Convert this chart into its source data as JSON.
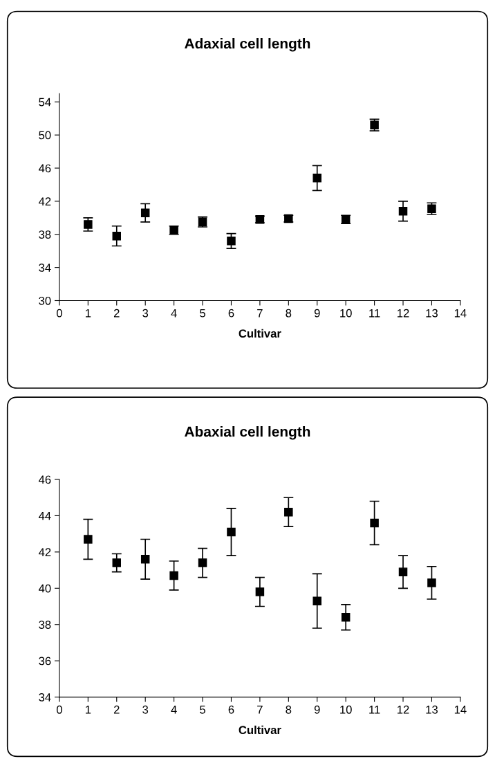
{
  "chart_data": [
    {
      "type": "scatter",
      "title": "Adaxial cell length",
      "xlabel": "Cultivar",
      "x": [
        1,
        2,
        3,
        4,
        5,
        6,
        7,
        8,
        9,
        10,
        11,
        12,
        13
      ],
      "marker": "square",
      "grid": false,
      "legend": false,
      "series": [
        {
          "color": "#000000",
          "values": [
            39.2,
            37.8,
            40.6,
            38.5,
            39.5,
            37.2,
            39.8,
            39.9,
            44.8,
            39.8,
            51.2,
            40.8,
            41.1
          ],
          "errors": [
            0.8,
            1.2,
            1.1,
            0.5,
            0.6,
            0.9,
            0.4,
            0.4,
            1.5,
            0.5,
            0.7,
            1.2,
            0.7
          ]
        }
      ],
      "xlim": [
        0,
        14
      ],
      "xticks": [
        0,
        1,
        2,
        3,
        4,
        5,
        6,
        7,
        8,
        9,
        10,
        11,
        12,
        13,
        14
      ],
      "ylim": [
        30,
        55
      ],
      "yticks": [
        30,
        34,
        38,
        42,
        46,
        50,
        54
      ]
    },
    {
      "type": "scatter",
      "title": "Abaxial cell length",
      "xlabel": "Cultivar",
      "x": [
        1,
        2,
        3,
        4,
        5,
        6,
        7,
        8,
        9,
        10,
        11,
        12,
        13
      ],
      "marker": "square",
      "grid": false,
      "legend": false,
      "series": [
        {
          "color": "#000000",
          "values": [
            42.7,
            41.4,
            41.6,
            40.7,
            41.4,
            43.1,
            39.8,
            44.2,
            39.3,
            38.4,
            43.6,
            40.9,
            40.3
          ],
          "errors": [
            1.1,
            0.5,
            1.1,
            0.8,
            0.8,
            1.3,
            0.8,
            0.8,
            1.5,
            0.7,
            1.2,
            0.9,
            0.9
          ]
        }
      ],
      "xlim": [
        0,
        14
      ],
      "xticks": [
        0,
        1,
        2,
        3,
        4,
        5,
        6,
        7,
        8,
        9,
        10,
        11,
        12,
        13,
        14
      ],
      "ylim": [
        34,
        46
      ],
      "yticks": [
        34,
        36,
        38,
        40,
        42,
        44,
        46
      ]
    }
  ]
}
